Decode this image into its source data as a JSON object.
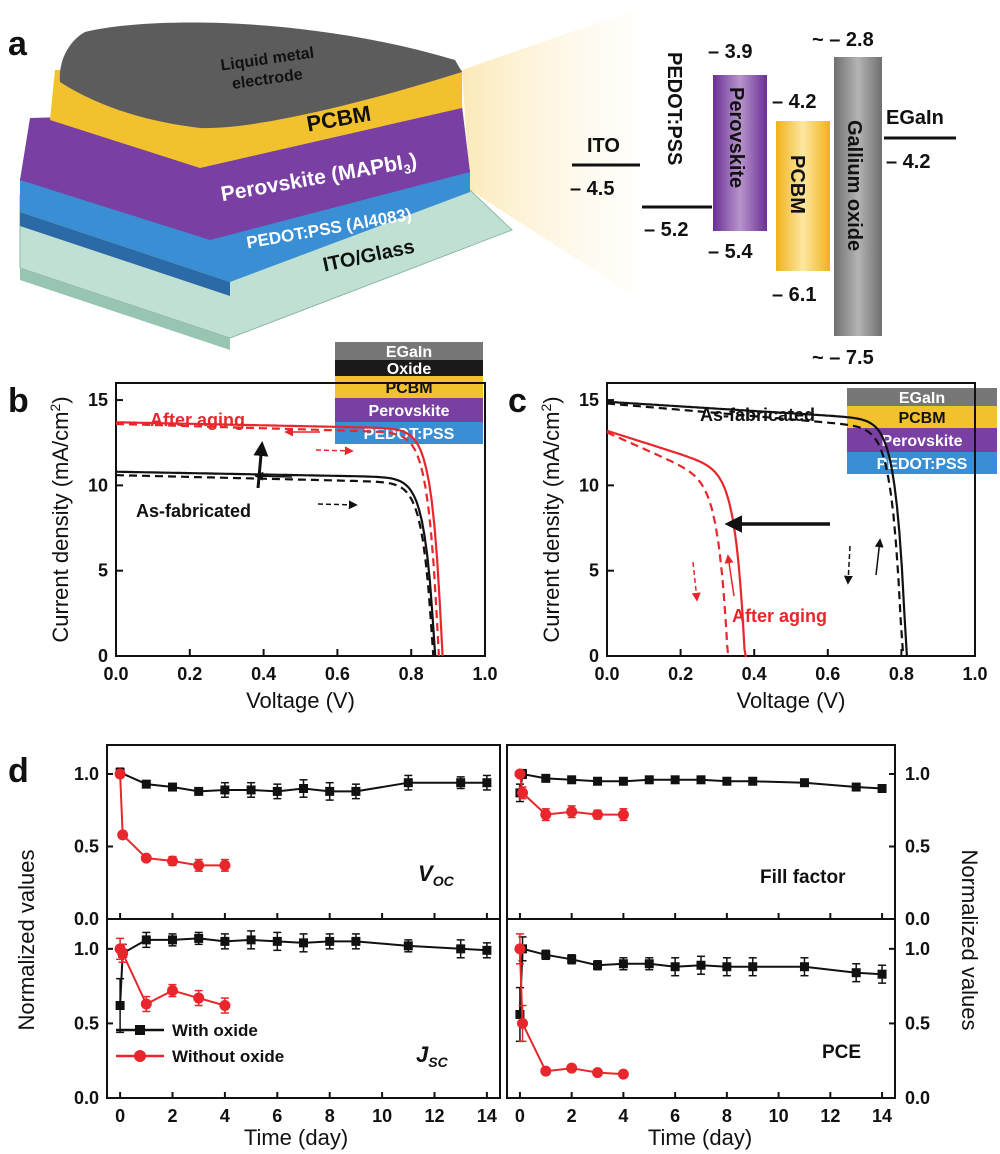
{
  "colors": {
    "black_series": "#111111",
    "red_series": "#e8262b",
    "pcbm": "#f2c22e",
    "perovskite": "#7a3fa3",
    "pedot": "#3a8ed3",
    "ito_glass": "#bfe0d2",
    "liquid_metal": "#5a5a5a",
    "gallium_oxide": "#8c8c8c"
  },
  "panel_a": {
    "letter": "a",
    "layers": {
      "liquid_metal_line1": "Liquid metal",
      "liquid_metal_line2": "electrode",
      "pcbm": "PCBM",
      "perovskite": "Perovskite (MAPbI",
      "perovskite_sub": "3",
      "perovskite_close": ")",
      "pedot": "PEDOT:PSS (Al4083)",
      "ito": "ITO/Glass"
    },
    "bands": {
      "ito_name": "ITO",
      "ito_level": "– 4.5",
      "pedot_name": "PEDOT:PSS",
      "pedot_level": "– 5.2",
      "perovskite_name": "Perovskite",
      "perovskite_top": "– 3.9",
      "perovskite_bottom": "– 5.4",
      "pcbm_name": "PCBM",
      "pcbm_top": "– 4.2",
      "pcbm_bottom": "– 6.1",
      "gallium_name": "Gallium oxide",
      "gallium_top": "~ – 2.8",
      "gallium_bottom": "~ – 7.5",
      "egain_name": "EGaIn",
      "egain_level": "– 4.2"
    }
  },
  "panel_b": {
    "letter": "b",
    "stack": [
      "EGaIn",
      "Oxide",
      "PCBM",
      "Perovskite",
      "PEDOT:PSS"
    ],
    "label_red": "After aging",
    "label_black": "As-fabricated"
  },
  "panel_c": {
    "letter": "c",
    "stack": [
      "EGaIn",
      "PCBM",
      "Perovskite",
      "PEDOT:PSS"
    ],
    "label_red": "After aging",
    "label_black": "As-fabricated"
  },
  "panel_d": {
    "letter": "d",
    "ylabel_left": "Normalized values",
    "ylabel_right": "Normalized values",
    "xlabel": "Time (day)",
    "legend_black": "With oxide",
    "legend_red": "Without oxide",
    "voc_main": "V",
    "voc_sub": "OC",
    "jsc_main": "J",
    "jsc_sub": "SC",
    "ff_label": "Fill factor",
    "pce_label": "PCE"
  },
  "chart_data": [
    {
      "type": "line",
      "panel": "b",
      "xlabel": "Voltage (V)",
      "ylabel": "Current density (mA/cm",
      "ylabel_sup": "2",
      "ylabel_close": ")",
      "xlim": [
        0.0,
        1.0
      ],
      "ylim": [
        0,
        16
      ],
      "xticks": [
        "0.0",
        "0.2",
        "0.4",
        "0.6",
        "0.8",
        "1.0"
      ],
      "yticks": [
        "0",
        "5",
        "10",
        "15"
      ],
      "series": [
        {
          "color": "red",
          "style": "solid",
          "jsc": 13.7,
          "voc": 0.885,
          "knee_v": 0.78,
          "sag": 0.4
        },
        {
          "color": "red",
          "style": "dashed",
          "jsc": 13.6,
          "voc": 0.875,
          "knee_v": 0.76,
          "sag": 0.55
        },
        {
          "color": "black",
          "style": "solid",
          "jsc": 10.8,
          "voc": 0.865,
          "knee_v": 0.76,
          "sag": 0.35
        },
        {
          "color": "black",
          "style": "dashed",
          "jsc": 10.6,
          "voc": 0.86,
          "knee_v": 0.75,
          "sag": 0.45
        }
      ]
    },
    {
      "type": "line",
      "panel": "c",
      "xlabel": "Voltage (V)",
      "ylabel": "Current density (mA/cm",
      "ylabel_sup": "2",
      "ylabel_close": ")",
      "xlim": [
        0.0,
        1.0
      ],
      "ylim": [
        0,
        16
      ],
      "xticks": [
        "0.0",
        "0.2",
        "0.4",
        "0.6",
        "0.8",
        "1.0"
      ],
      "yticks": [
        "0",
        "5",
        "10",
        "15"
      ],
      "series": [
        {
          "color": "black",
          "style": "solid",
          "jsc": 14.9,
          "voc": 0.815,
          "knee_v": 0.66,
          "sag": 1.1
        },
        {
          "color": "black",
          "style": "dashed",
          "jsc": 14.8,
          "voc": 0.805,
          "knee_v": 0.62,
          "sag": 1.5
        },
        {
          "color": "red",
          "style": "solid",
          "jsc": 13.2,
          "voc": 0.38,
          "knee_v": 0.24,
          "sag": 2.6
        },
        {
          "color": "red",
          "style": "dashed",
          "jsc": 13.1,
          "voc": 0.335,
          "knee_v": 0.19,
          "sag": 3.2
        }
      ]
    },
    {
      "type": "line",
      "panel": "d",
      "xlim": [
        -0.5,
        14.5
      ],
      "ylim": [
        0,
        1.2
      ],
      "xticks": [
        "0",
        "2",
        "4",
        "6",
        "8",
        "10",
        "12",
        "14"
      ],
      "yticks": [
        "0.0",
        "0.5",
        "1.0"
      ],
      "subplots": [
        {
          "id": "voc",
          "series": [
            {
              "name": "With oxide",
              "color": "black",
              "x": [
                0,
                1,
                2,
                3,
                4,
                5,
                6,
                7,
                8,
                9,
                11,
                13,
                14
              ],
              "y": [
                1.01,
                0.93,
                0.91,
                0.88,
                0.89,
                0.89,
                0.88,
                0.9,
                0.88,
                0.88,
                0.94,
                0.94,
                0.94
              ],
              "err": [
                0.03,
                0.02,
                0.02,
                0.02,
                0.05,
                0.05,
                0.05,
                0.06,
                0.06,
                0.05,
                0.05,
                0.04,
                0.05
              ]
            },
            {
              "name": "Without oxide",
              "color": "red",
              "x": [
                0,
                0.1,
                1,
                2,
                3,
                4
              ],
              "y": [
                1.0,
                0.58,
                0.42,
                0.4,
                0.37,
                0.37
              ],
              "err": [
                0.02,
                0.02,
                0.02,
                0.03,
                0.04,
                0.04
              ]
            }
          ]
        },
        {
          "id": "ff",
          "series": [
            {
              "name": "With oxide",
              "color": "black",
              "x": [
                0,
                0.1,
                1,
                2,
                3,
                4,
                5,
                6,
                7,
                8,
                9,
                11,
                13,
                14
              ],
              "y": [
                0.87,
                1.0,
                0.97,
                0.96,
                0.95,
                0.95,
                0.96,
                0.96,
                0.96,
                0.95,
                0.95,
                0.94,
                0.91,
                0.9
              ],
              "err": [
                0.06,
                0.03,
                0.02,
                0.02,
                0.02,
                0.02,
                0.02,
                0.02,
                0.02,
                0.02,
                0.02,
                0.02,
                0.02,
                0.02
              ]
            },
            {
              "name": "Without oxide",
              "color": "red",
              "x": [
                0,
                0.1,
                1,
                2,
                3,
                4
              ],
              "y": [
                1.0,
                0.87,
                0.72,
                0.74,
                0.72,
                0.72
              ],
              "err": [
                0.02,
                0.04,
                0.04,
                0.04,
                0.03,
                0.04
              ]
            }
          ]
        },
        {
          "id": "jsc",
          "series": [
            {
              "name": "With oxide",
              "color": "black",
              "x": [
                0,
                0.1,
                1,
                2,
                3,
                4,
                5,
                6,
                7,
                8,
                9,
                11,
                13,
                14
              ],
              "y": [
                0.62,
                0.97,
                1.06,
                1.06,
                1.07,
                1.05,
                1.06,
                1.05,
                1.04,
                1.05,
                1.05,
                1.02,
                1.0,
                0.99
              ],
              "err": [
                0.18,
                0.06,
                0.05,
                0.04,
                0.04,
                0.05,
                0.06,
                0.06,
                0.06,
                0.05,
                0.05,
                0.04,
                0.06,
                0.05
              ]
            },
            {
              "name": "Without oxide",
              "color": "red",
              "x": [
                0,
                0.1,
                1,
                2,
                3,
                4
              ],
              "y": [
                1.0,
                0.97,
                0.63,
                0.72,
                0.67,
                0.62
              ],
              "err": [
                0.07,
                0.06,
                0.05,
                0.04,
                0.05,
                0.05
              ]
            }
          ]
        },
        {
          "id": "pce",
          "series": [
            {
              "name": "With oxide",
              "color": "black",
              "x": [
                0,
                0.1,
                1,
                2,
                3,
                4,
                5,
                6,
                7,
                8,
                9,
                11,
                13,
                14
              ],
              "y": [
                0.56,
                1.0,
                0.96,
                0.93,
                0.89,
                0.9,
                0.9,
                0.88,
                0.89,
                0.88,
                0.88,
                0.88,
                0.84,
                0.83
              ],
              "err": [
                0.18,
                0.08,
                0.03,
                0.03,
                0.03,
                0.04,
                0.04,
                0.06,
                0.06,
                0.06,
                0.06,
                0.06,
                0.06,
                0.06
              ]
            },
            {
              "name": "Without oxide",
              "color": "red",
              "x": [
                0,
                0.1,
                1,
                2,
                3,
                4
              ],
              "y": [
                1.0,
                0.5,
                0.18,
                0.2,
                0.17,
                0.16
              ],
              "err": [
                0.1,
                0.12,
                0.02,
                0.02,
                0.02,
                0.02
              ]
            }
          ]
        }
      ]
    }
  ]
}
